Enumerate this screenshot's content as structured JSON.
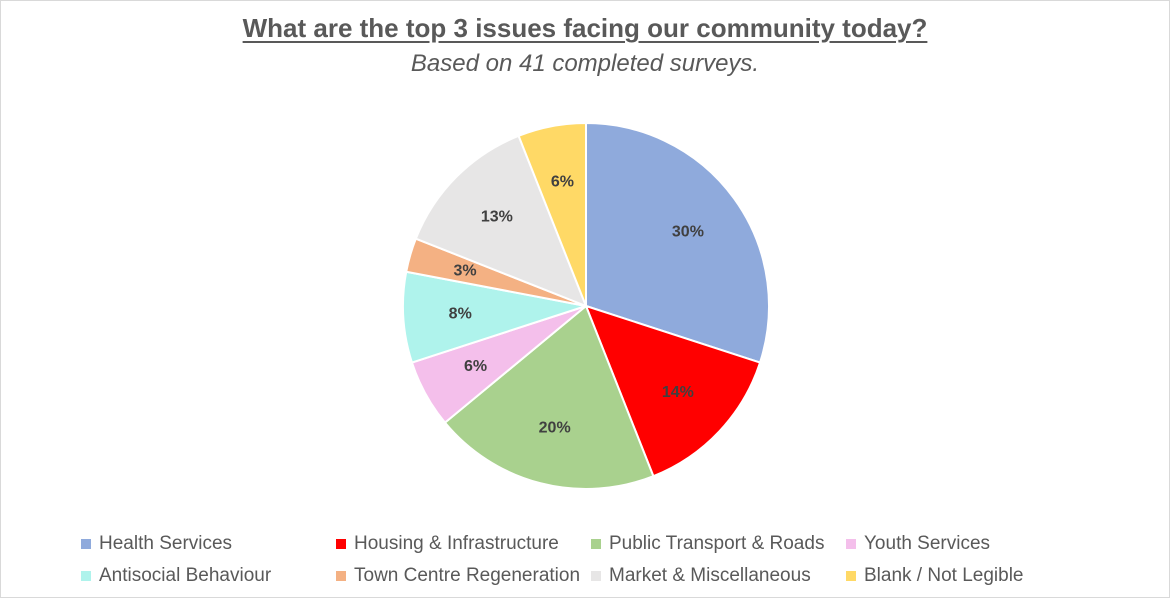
{
  "chart": {
    "title": "What are the top 3 issues facing our community today?",
    "subtitle": "Based on 41 completed surveys."
  },
  "chart_data": {
    "type": "pie",
    "title": "What are the top 3 issues facing our community today?",
    "subtitle": "Based on 41 completed surveys.",
    "labels": [
      "Health Services",
      "Housing & Infrastructure",
      "Public Transport & Roads",
      "Youth Services",
      "Antisocial Behaviour",
      "Town Centre Regeneration",
      "Market & Miscellaneous",
      "Blank / Not Legible"
    ],
    "values": [
      30,
      14,
      20,
      6,
      8,
      3,
      13,
      6
    ],
    "data_labels": [
      "30%",
      "14%",
      "20%",
      "6%",
      "8%",
      "3%",
      "13%",
      "6%"
    ],
    "colors": [
      "#8faadc",
      "#ff0000",
      "#a9d18e",
      "#f4bfeb",
      "#aff3ec",
      "#f4b183",
      "#e7e6e6",
      "#ffd966"
    ],
    "start_angle": "12 o'clock",
    "direction": "clockwise",
    "legend_position": "bottom"
  }
}
